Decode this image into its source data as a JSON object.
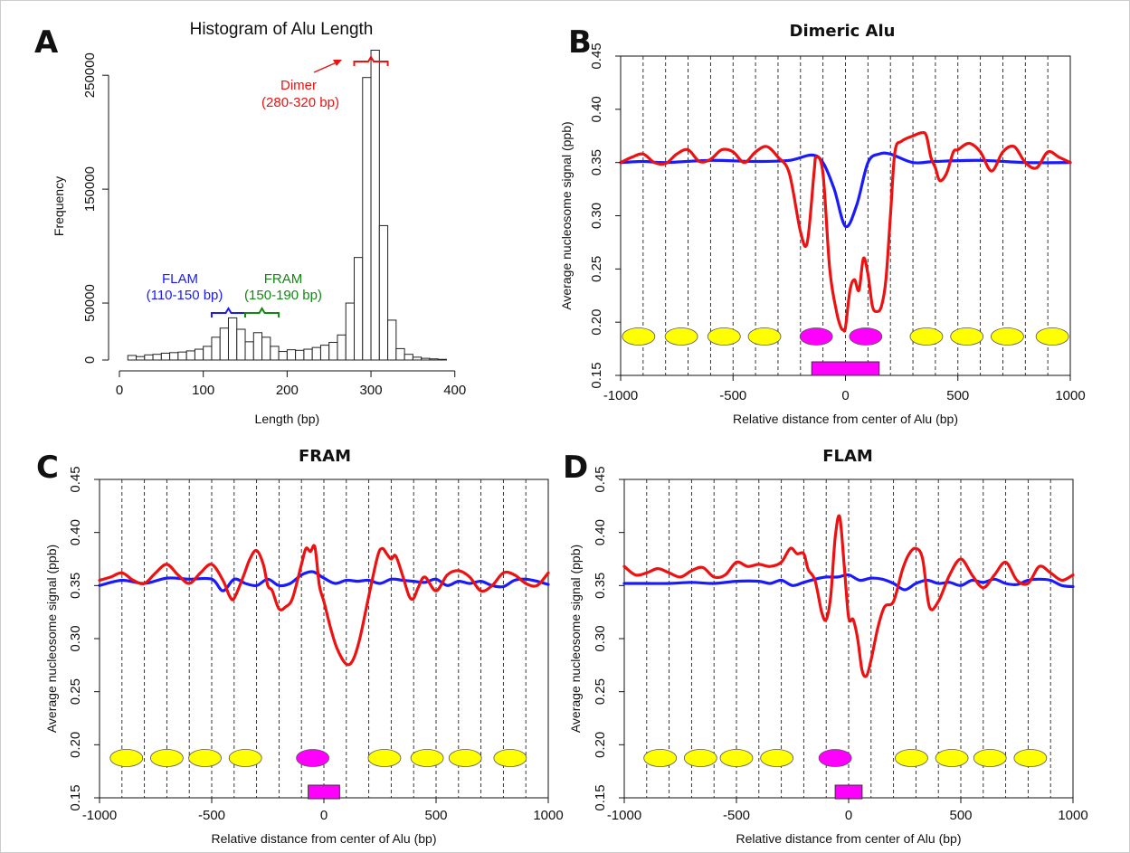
{
  "figure": {
    "border_color": "#cccccc"
  },
  "chart_data": [
    {
      "panel": "A",
      "type": "bar",
      "title": "Histogram of Alu Length",
      "xlabel": "Length (bp)",
      "ylabel": "Frequency",
      "xlim": [
        0,
        410
      ],
      "ylim": [
        0,
        270000
      ],
      "xticks": [
        0,
        100,
        200,
        300,
        400
      ],
      "yticks": [
        0,
        50000,
        150000,
        250000
      ],
      "bin_width": 10,
      "bin_starts": [
        10,
        20,
        30,
        40,
        50,
        60,
        70,
        80,
        90,
        100,
        110,
        120,
        130,
        140,
        150,
        160,
        170,
        180,
        190,
        200,
        210,
        220,
        230,
        240,
        250,
        260,
        270,
        280,
        290,
        300,
        310,
        320,
        330,
        340,
        350,
        360,
        370,
        380
      ],
      "values": [
        4000,
        3000,
        4500,
        5000,
        6000,
        6500,
        7000,
        8000,
        9500,
        12000,
        20000,
        28000,
        37000,
        27000,
        16000,
        24000,
        20000,
        12000,
        7500,
        9000,
        8500,
        9500,
        11000,
        13000,
        15500,
        22000,
        50000,
        90000,
        248000,
        272000,
        118000,
        35000,
        10000,
        5000,
        2500,
        1500,
        1000,
        600
      ],
      "annotations": [
        {
          "lines": [
            "Dimer",
            "(280-320 bp)"
          ],
          "color": "#ee1111",
          "range": [
            280,
            320
          ]
        },
        {
          "lines": [
            "FLAM",
            "(110-150 bp)"
          ],
          "color": "#1a1aff",
          "range": [
            110,
            150
          ]
        },
        {
          "lines": [
            "FRAM",
            "(150-190 bp)"
          ],
          "color": "#118811",
          "range": [
            150,
            190
          ]
        }
      ]
    },
    {
      "panel": "B",
      "type": "line",
      "title": "Dimeric Alu",
      "xlabel": "Relative distance from center of Alu (bp)",
      "ylabel": "Average nucleosome signal (ppb)",
      "xlim": [
        -1000,
        1000
      ],
      "ylim": [
        0.15,
        0.45
      ],
      "xticks": [
        -1000,
        -500,
        0,
        500,
        1000
      ],
      "yticks": [
        0.15,
        0.2,
        0.25,
        0.3,
        0.35,
        0.4,
        0.45
      ],
      "grid_x": [
        -900,
        -800,
        -700,
        -600,
        -500,
        -400,
        -300,
        -200,
        -100,
        0,
        100,
        200,
        300,
        400,
        500,
        600,
        700,
        800,
        900
      ],
      "series": [
        {
          "color": "#1a1aff",
          "x": [
            -1000,
            -900,
            -800,
            -600,
            -400,
            -250,
            -150,
            -100,
            -50,
            0,
            50,
            100,
            150,
            200,
            300,
            400,
            600,
            800,
            1000
          ],
          "y": [
            0.35,
            0.351,
            0.35,
            0.352,
            0.351,
            0.352,
            0.357,
            0.35,
            0.325,
            0.29,
            0.31,
            0.35,
            0.358,
            0.358,
            0.35,
            0.351,
            0.352,
            0.35,
            0.35
          ]
        },
        {
          "color": "#ee1111",
          "x": [
            -1000,
            -950,
            -900,
            -850,
            -800,
            -750,
            -700,
            -650,
            -600,
            -550,
            -500,
            -450,
            -400,
            -350,
            -300,
            -250,
            -200,
            -170,
            -140,
            -130,
            -100,
            -70,
            -40,
            -20,
            -10,
            0,
            20,
            40,
            60,
            80,
            100,
            120,
            140,
            160,
            180,
            200,
            220,
            250,
            300,
            340,
            360,
            380,
            400,
            420,
            450,
            480,
            500,
            550,
            600,
            650,
            700,
            750,
            800,
            850,
            900,
            950,
            1000
          ],
          "y": [
            0.35,
            0.355,
            0.358,
            0.35,
            0.349,
            0.358,
            0.362,
            0.351,
            0.353,
            0.362,
            0.36,
            0.35,
            0.36,
            0.365,
            0.355,
            0.34,
            0.285,
            0.275,
            0.34,
            0.355,
            0.34,
            0.25,
            0.21,
            0.195,
            0.193,
            0.195,
            0.23,
            0.24,
            0.23,
            0.26,
            0.245,
            0.215,
            0.21,
            0.215,
            0.24,
            0.3,
            0.36,
            0.37,
            0.375,
            0.378,
            0.375,
            0.355,
            0.345,
            0.333,
            0.34,
            0.36,
            0.362,
            0.368,
            0.36,
            0.342,
            0.36,
            0.365,
            0.35,
            0.345,
            0.36,
            0.355,
            0.35
          ]
        }
      ],
      "nucleosomes": [
        {
          "x": -920,
          "color": "#ffff00"
        },
        {
          "x": -730,
          "color": "#ffff00"
        },
        {
          "x": -540,
          "color": "#ffff00"
        },
        {
          "x": -360,
          "color": "#ffff00"
        },
        {
          "x": -130,
          "color": "#ff00ff"
        },
        {
          "x": 90,
          "color": "#ff00ff"
        },
        {
          "x": 360,
          "color": "#ffff00"
        },
        {
          "x": 540,
          "color": "#ffff00"
        },
        {
          "x": 720,
          "color": "#ffff00"
        },
        {
          "x": 920,
          "color": "#ffff00"
        }
      ],
      "alu_box": {
        "x": [
          -150,
          150
        ],
        "color": "#ff00ff"
      }
    },
    {
      "panel": "C",
      "type": "line",
      "title": "FRAM",
      "xlabel": "Relative distance from center of Alu (bp)",
      "ylabel": "Average nucleosome signal (ppb)",
      "xlim": [
        -1000,
        1000
      ],
      "ylim": [
        0.15,
        0.45
      ],
      "xticks": [
        -1000,
        -500,
        0,
        500,
        1000
      ],
      "yticks": [
        0.15,
        0.2,
        0.25,
        0.3,
        0.35,
        0.4,
        0.45
      ],
      "grid_x": [
        -900,
        -800,
        -700,
        -600,
        -500,
        -400,
        -300,
        -200,
        -100,
        0,
        100,
        200,
        300,
        400,
        500,
        600,
        700,
        800,
        900
      ],
      "series": [
        {
          "color": "#1a1aff",
          "x": [
            -1000,
            -900,
            -800,
            -700,
            -600,
            -500,
            -450,
            -400,
            -350,
            -300,
            -250,
            -200,
            -150,
            -100,
            -50,
            0,
            50,
            100,
            150,
            200,
            250,
            300,
            350,
            400,
            450,
            500,
            550,
            600,
            650,
            700,
            750,
            800,
            850,
            900,
            950,
            1000
          ],
          "y": [
            0.35,
            0.355,
            0.352,
            0.357,
            0.356,
            0.356,
            0.345,
            0.356,
            0.352,
            0.35,
            0.356,
            0.35,
            0.352,
            0.36,
            0.363,
            0.357,
            0.352,
            0.355,
            0.354,
            0.355,
            0.352,
            0.356,
            0.355,
            0.354,
            0.353,
            0.356,
            0.35,
            0.354,
            0.352,
            0.354,
            0.35,
            0.349,
            0.355,
            0.356,
            0.354,
            0.351
          ]
        },
        {
          "color": "#ee1111",
          "x": [
            -1000,
            -950,
            -900,
            -850,
            -800,
            -750,
            -700,
            -650,
            -600,
            -550,
            -500,
            -450,
            -420,
            -400,
            -360,
            -330,
            -300,
            -270,
            -250,
            -230,
            -200,
            -170,
            -140,
            -100,
            -80,
            -60,
            -40,
            -20,
            0,
            30,
            60,
            100,
            130,
            160,
            200,
            240,
            260,
            280,
            300,
            320,
            350,
            380,
            400,
            420,
            450,
            500,
            550,
            600,
            650,
            700,
            750,
            800,
            850,
            900,
            950,
            1000
          ],
          "y": [
            0.355,
            0.358,
            0.362,
            0.355,
            0.352,
            0.362,
            0.37,
            0.36,
            0.352,
            0.362,
            0.37,
            0.355,
            0.34,
            0.338,
            0.358,
            0.375,
            0.383,
            0.37,
            0.35,
            0.345,
            0.328,
            0.33,
            0.338,
            0.37,
            0.385,
            0.382,
            0.386,
            0.35,
            0.335,
            0.31,
            0.29,
            0.276,
            0.28,
            0.3,
            0.34,
            0.378,
            0.385,
            0.38,
            0.375,
            0.378,
            0.36,
            0.34,
            0.338,
            0.348,
            0.358,
            0.345,
            0.36,
            0.364,
            0.358,
            0.345,
            0.35,
            0.362,
            0.36,
            0.352,
            0.35,
            0.362
          ]
        }
      ],
      "nucleosomes": [
        {
          "x": -880,
          "color": "#ffff00"
        },
        {
          "x": -700,
          "color": "#ffff00"
        },
        {
          "x": -530,
          "color": "#ffff00"
        },
        {
          "x": -350,
          "color": "#ffff00"
        },
        {
          "x": -50,
          "color": "#ff00ff"
        },
        {
          "x": 270,
          "color": "#ffff00"
        },
        {
          "x": 460,
          "color": "#ffff00"
        },
        {
          "x": 630,
          "color": "#ffff00"
        },
        {
          "x": 830,
          "color": "#ffff00"
        }
      ],
      "alu_box": {
        "x": [
          -70,
          70
        ],
        "color": "#ff00ff"
      }
    },
    {
      "panel": "D",
      "type": "line",
      "title": "FLAM",
      "xlabel": "Relative distance from center of Alu (bp)",
      "ylabel": "Average nucleosome signal (ppb)",
      "xlim": [
        -1000,
        1000
      ],
      "ylim": [
        0.15,
        0.45
      ],
      "xticks": [
        -1000,
        -500,
        0,
        500,
        1000
      ],
      "yticks": [
        0.15,
        0.2,
        0.25,
        0.3,
        0.35,
        0.4,
        0.45
      ],
      "grid_x": [
        -900,
        -800,
        -700,
        -600,
        -500,
        -400,
        -300,
        -200,
        -100,
        0,
        100,
        200,
        300,
        400,
        500,
        600,
        700,
        800,
        900
      ],
      "series": [
        {
          "color": "#1a1aff",
          "x": [
            -1000,
            -900,
            -800,
            -700,
            -600,
            -500,
            -400,
            -350,
            -300,
            -250,
            -200,
            -150,
            -100,
            -50,
            0,
            50,
            100,
            150,
            200,
            250,
            300,
            350,
            400,
            450,
            500,
            550,
            600,
            650,
            700,
            750,
            800,
            850,
            900,
            950,
            1000
          ],
          "y": [
            0.352,
            0.352,
            0.352,
            0.353,
            0.352,
            0.354,
            0.354,
            0.352,
            0.355,
            0.35,
            0.353,
            0.356,
            0.358,
            0.358,
            0.36,
            0.355,
            0.357,
            0.356,
            0.352,
            0.346,
            0.352,
            0.355,
            0.352,
            0.353,
            0.35,
            0.355,
            0.353,
            0.356,
            0.352,
            0.351,
            0.355,
            0.356,
            0.355,
            0.35,
            0.349
          ]
        },
        {
          "color": "#ee1111",
          "x": [
            -1000,
            -950,
            -900,
            -850,
            -800,
            -750,
            -700,
            -650,
            -600,
            -550,
            -500,
            -450,
            -400,
            -350,
            -300,
            -260,
            -230,
            -200,
            -180,
            -150,
            -120,
            -100,
            -80,
            -60,
            -40,
            -20,
            0,
            20,
            40,
            60,
            80,
            100,
            130,
            160,
            200,
            240,
            270,
            300,
            330,
            360,
            400,
            450,
            500,
            550,
            600,
            650,
            700,
            750,
            800,
            850,
            900,
            950,
            1000
          ],
          "y": [
            0.368,
            0.36,
            0.362,
            0.366,
            0.362,
            0.358,
            0.364,
            0.367,
            0.358,
            0.36,
            0.372,
            0.368,
            0.37,
            0.368,
            0.372,
            0.385,
            0.38,
            0.38,
            0.365,
            0.355,
            0.325,
            0.318,
            0.34,
            0.395,
            0.415,
            0.37,
            0.32,
            0.318,
            0.3,
            0.27,
            0.265,
            0.28,
            0.31,
            0.33,
            0.335,
            0.365,
            0.38,
            0.385,
            0.375,
            0.33,
            0.335,
            0.36,
            0.375,
            0.36,
            0.348,
            0.36,
            0.372,
            0.355,
            0.352,
            0.368,
            0.362,
            0.355,
            0.36
          ]
        }
      ],
      "nucleosomes": [
        {
          "x": -840,
          "color": "#ffff00"
        },
        {
          "x": -660,
          "color": "#ffff00"
        },
        {
          "x": -500,
          "color": "#ffff00"
        },
        {
          "x": -320,
          "color": "#ffff00"
        },
        {
          "x": -60,
          "color": "#ff00ff"
        },
        {
          "x": 280,
          "color": "#ffff00"
        },
        {
          "x": 460,
          "color": "#ffff00"
        },
        {
          "x": 630,
          "color": "#ffff00"
        },
        {
          "x": 810,
          "color": "#ffff00"
        }
      ],
      "alu_box": {
        "x": [
          -60,
          60
        ],
        "color": "#ff00ff"
      }
    }
  ]
}
